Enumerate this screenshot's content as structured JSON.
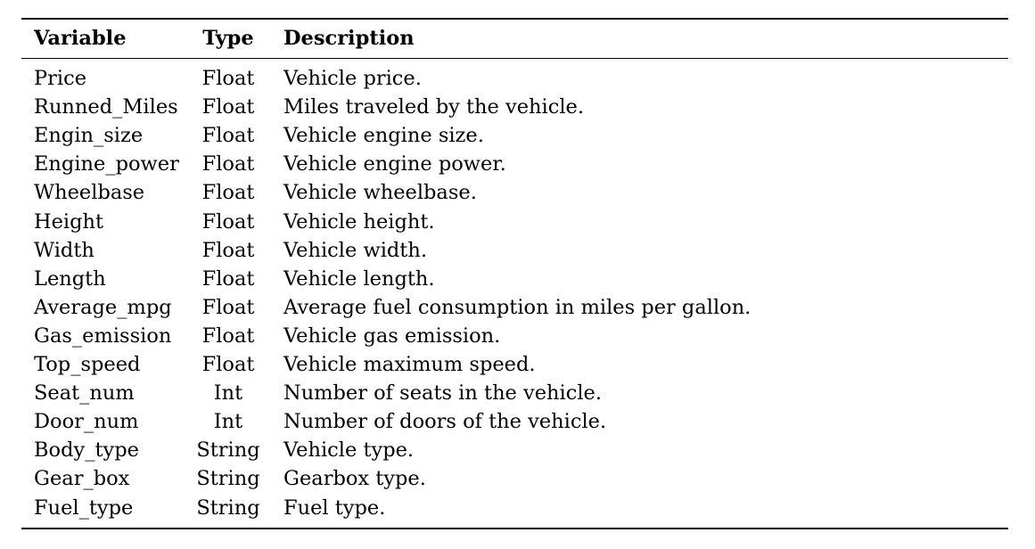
{
  "table": {
    "headers": {
      "variable": "Variable",
      "type": "Type",
      "description": "Description"
    },
    "rows": [
      {
        "variable": "Price",
        "type": "Float",
        "description": "Vehicle price."
      },
      {
        "variable": "Runned_Miles",
        "type": "Float",
        "description": "Miles traveled by the vehicle."
      },
      {
        "variable": "Engin_size",
        "type": "Float",
        "description": "Vehicle engine size."
      },
      {
        "variable": "Engine_power",
        "type": "Float",
        "description": "Vehicle engine power."
      },
      {
        "variable": "Wheelbase",
        "type": "Float",
        "description": "Vehicle wheelbase."
      },
      {
        "variable": "Height",
        "type": "Float",
        "description": "Vehicle height."
      },
      {
        "variable": "Width",
        "type": "Float",
        "description": "Vehicle width."
      },
      {
        "variable": "Length",
        "type": "Float",
        "description": "Vehicle length."
      },
      {
        "variable": "Average_mpg",
        "type": "Float",
        "description": "Average fuel consumption in miles per gallon."
      },
      {
        "variable": "Gas_emission",
        "type": "Float",
        "description": "Vehicle gas emission."
      },
      {
        "variable": "Top_speed",
        "type": "Float",
        "description": "Vehicle maximum speed."
      },
      {
        "variable": "Seat_num",
        "type": "Int",
        "description": "Number of seats in the vehicle."
      },
      {
        "variable": "Door_num",
        "type": "Int",
        "description": "Number of doors of the vehicle."
      },
      {
        "variable": "Body_type",
        "type": "String",
        "description": "Vehicle type."
      },
      {
        "variable": "Gear_box",
        "type": "String",
        "description": "Gearbox type."
      },
      {
        "variable": "Fuel_type",
        "type": "String",
        "description": "Fuel type."
      }
    ]
  }
}
